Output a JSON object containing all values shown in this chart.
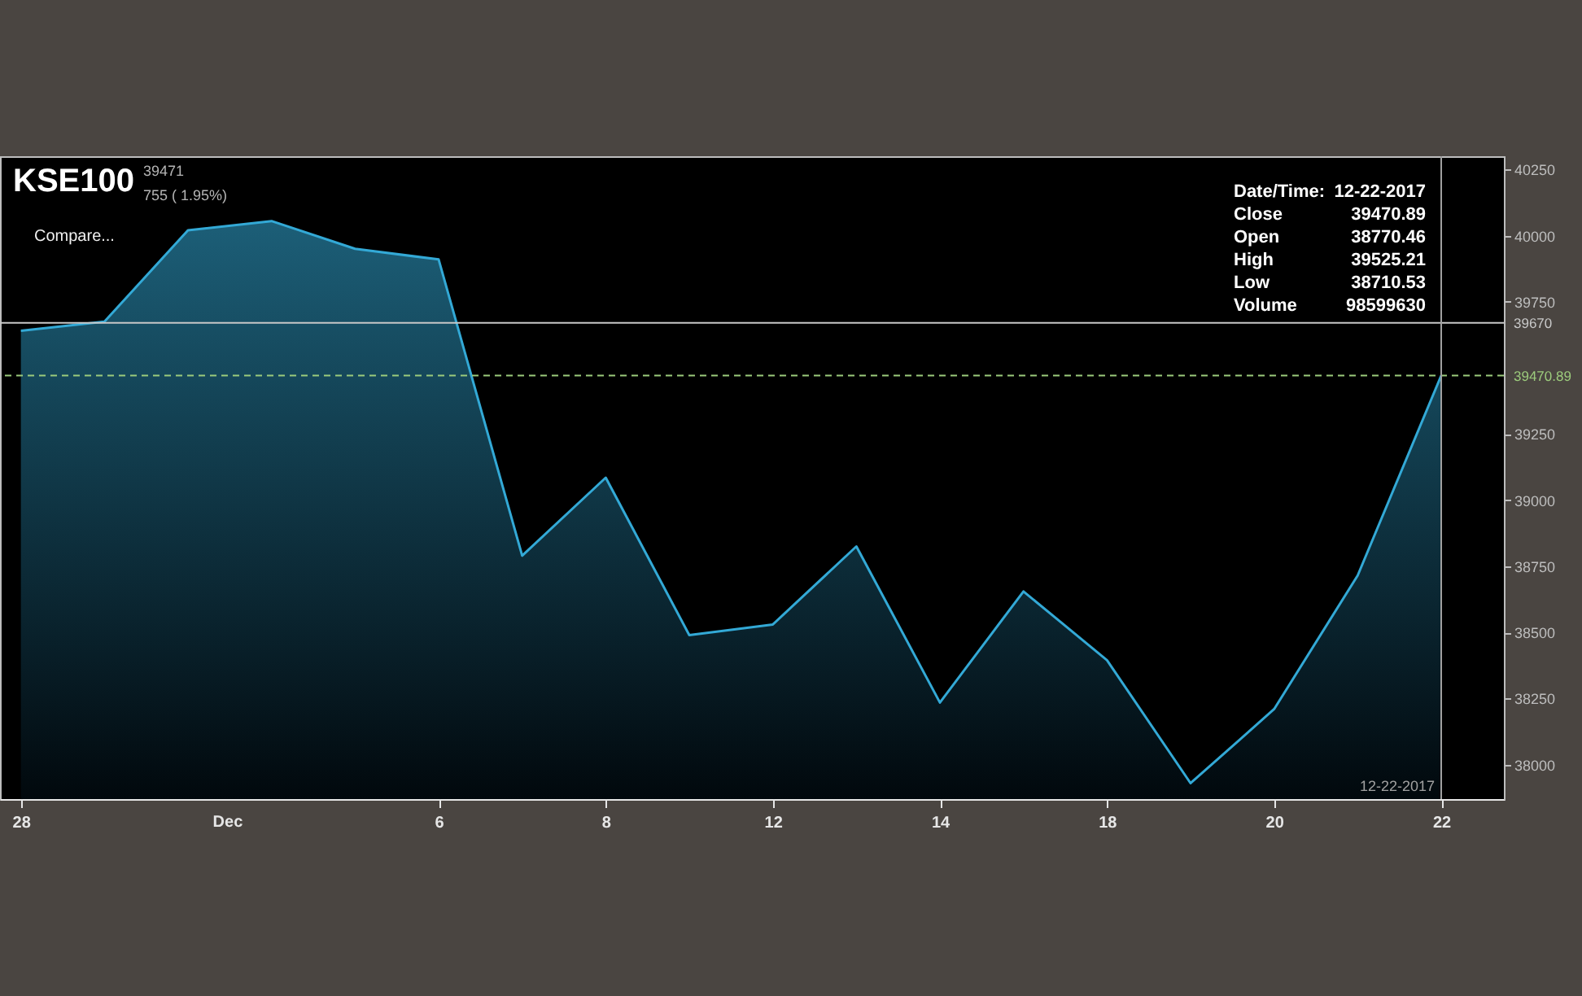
{
  "chart_data": {
    "type": "area",
    "title": "KSE100",
    "annotations": [
      "Dec",
      "39471",
      "755 ( 1.95%)",
      "Compare...",
      "Date/Time:",
      "12-22-2017",
      "Close",
      "39470.89",
      "Open",
      "38770.46",
      "High",
      "39525.21",
      "Low",
      "38710.53",
      "Volume",
      "98599630"
    ],
    "categories": [
      "28",
      null,
      null,
      null,
      null,
      "6",
      null,
      "8",
      null,
      "12",
      null,
      "14",
      null,
      "18",
      null,
      "20",
      null,
      "22"
    ],
    "values": [
      39640,
      39675,
      40020,
      40055,
      39950,
      39910,
      38790,
      39085,
      38490,
      38530,
      38825,
      38235,
      38655,
      38395,
      37930,
      38210,
      38715,
      39470.89
    ],
    "color": "#33a9d6",
    "ylim": [
      37870,
      40300
    ],
    "yticks": [
      38000,
      38250,
      38500,
      38750,
      39000,
      39250,
      39750,
      40000,
      40250
    ],
    "ref_lines": [
      {
        "axis": "y",
        "value": 39670,
        "label": "39670",
        "color": "#c8c8c8"
      },
      {
        "axis": "y",
        "value": 39470.89,
        "label": "39470.89",
        "color": "#9ccb7c",
        "line_style": "dashed"
      },
      {
        "axis": "x",
        "value": "22",
        "label": "12-22-2017",
        "color": "#a0a0a0"
      }
    ]
  }
}
